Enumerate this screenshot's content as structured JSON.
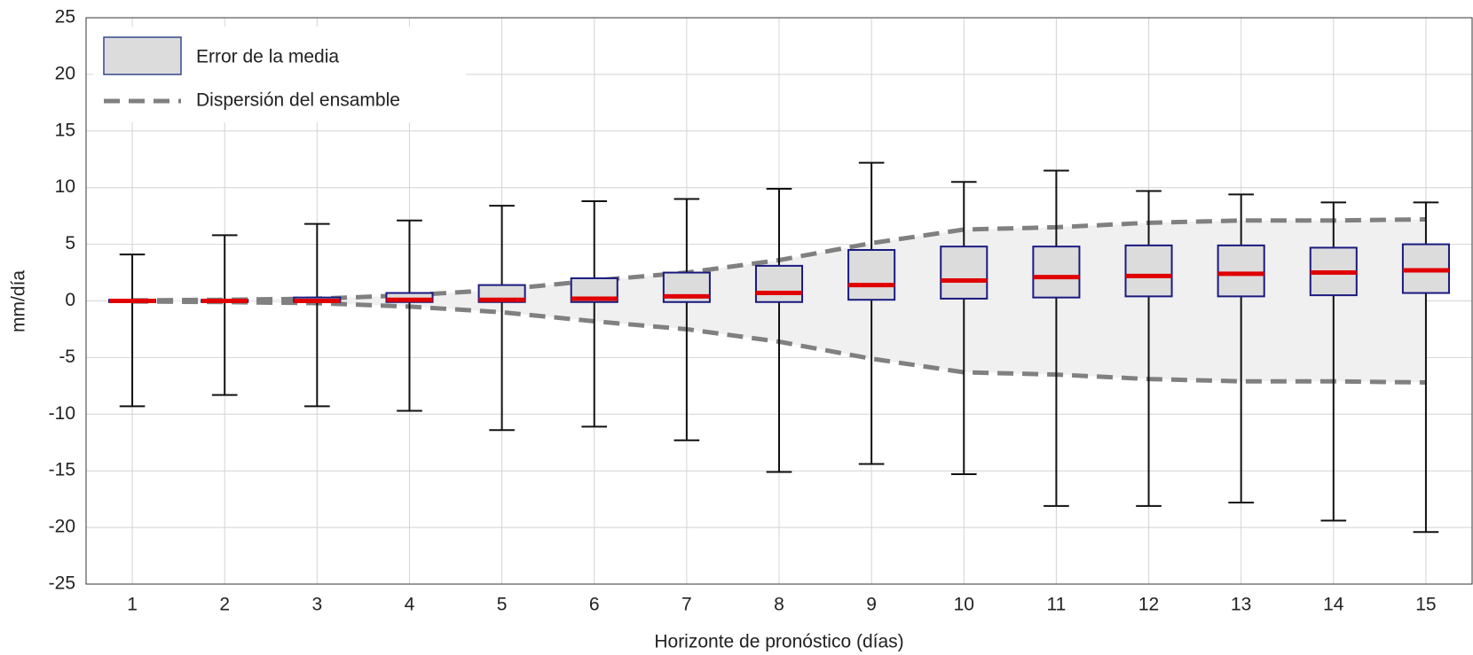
{
  "chart_data": {
    "type": "box",
    "x_label": "Horizonte de pronóstico (días)",
    "y_label": "mm/día",
    "x": [
      1,
      2,
      3,
      4,
      5,
      6,
      7,
      8,
      9,
      10,
      11,
      12,
      13,
      14,
      15
    ],
    "xlim": [
      0.5,
      15.5
    ],
    "xticks": [
      1,
      2,
      3,
      4,
      5,
      6,
      7,
      8,
      9,
      10,
      11,
      12,
      13,
      14,
      15
    ],
    "ylim": [
      -25,
      25
    ],
    "yticks": [
      -25,
      -20,
      -15,
      -10,
      -5,
      0,
      5,
      10,
      15,
      20,
      25
    ],
    "grid": true,
    "boxes": {
      "name": "Error de la media",
      "color": "#dcdcdc",
      "edge_color": "#1a1a80",
      "median_color": "#e00000",
      "whisker_color": "#111111",
      "whisker_low": [
        -9.3,
        -8.3,
        -9.3,
        -9.7,
        -11.4,
        -11.1,
        -12.3,
        -15.1,
        -14.4,
        -15.3,
        -18.1,
        -18.1,
        -17.8,
        -19.4,
        -20.4
      ],
      "q1": [
        -0.1,
        -0.1,
        -0.1,
        -0.1,
        -0.1,
        -0.1,
        -0.1,
        -0.1,
        0.1,
        0.2,
        0.3,
        0.4,
        0.4,
        0.5,
        0.7
      ],
      "median": [
        0,
        0,
        0,
        0.1,
        0.1,
        0.2,
        0.4,
        0.7,
        1.4,
        1.8,
        2.1,
        2.2,
        2.4,
        2.5,
        2.7
      ],
      "q3": [
        0.1,
        0.1,
        0.3,
        0.7,
        1.4,
        2.0,
        2.5,
        3.1,
        4.5,
        4.8,
        4.8,
        4.9,
        4.9,
        4.7,
        5.0
      ],
      "whisker_high": [
        4.1,
        5.8,
        6.8,
        7.1,
        8.4,
        8.8,
        9.0,
        9.9,
        12.2,
        10.5,
        11.5,
        9.7,
        9.4,
        8.7,
        8.7
      ]
    },
    "spread": {
      "name": "Dispersión del ensamble",
      "color": "#808080",
      "fill": "#f0f0f0",
      "upper": [
        0.05,
        0.1,
        0.2,
        0.5,
        1.0,
        1.8,
        2.5,
        3.6,
        5.1,
        6.3,
        6.5,
        6.9,
        7.1,
        7.1,
        7.2
      ],
      "lower": [
        -0.05,
        -0.1,
        -0.2,
        -0.5,
        -1.0,
        -1.8,
        -2.5,
        -3.6,
        -5.1,
        -6.3,
        -6.5,
        -6.9,
        -7.1,
        -7.1,
        -7.2
      ]
    }
  }
}
